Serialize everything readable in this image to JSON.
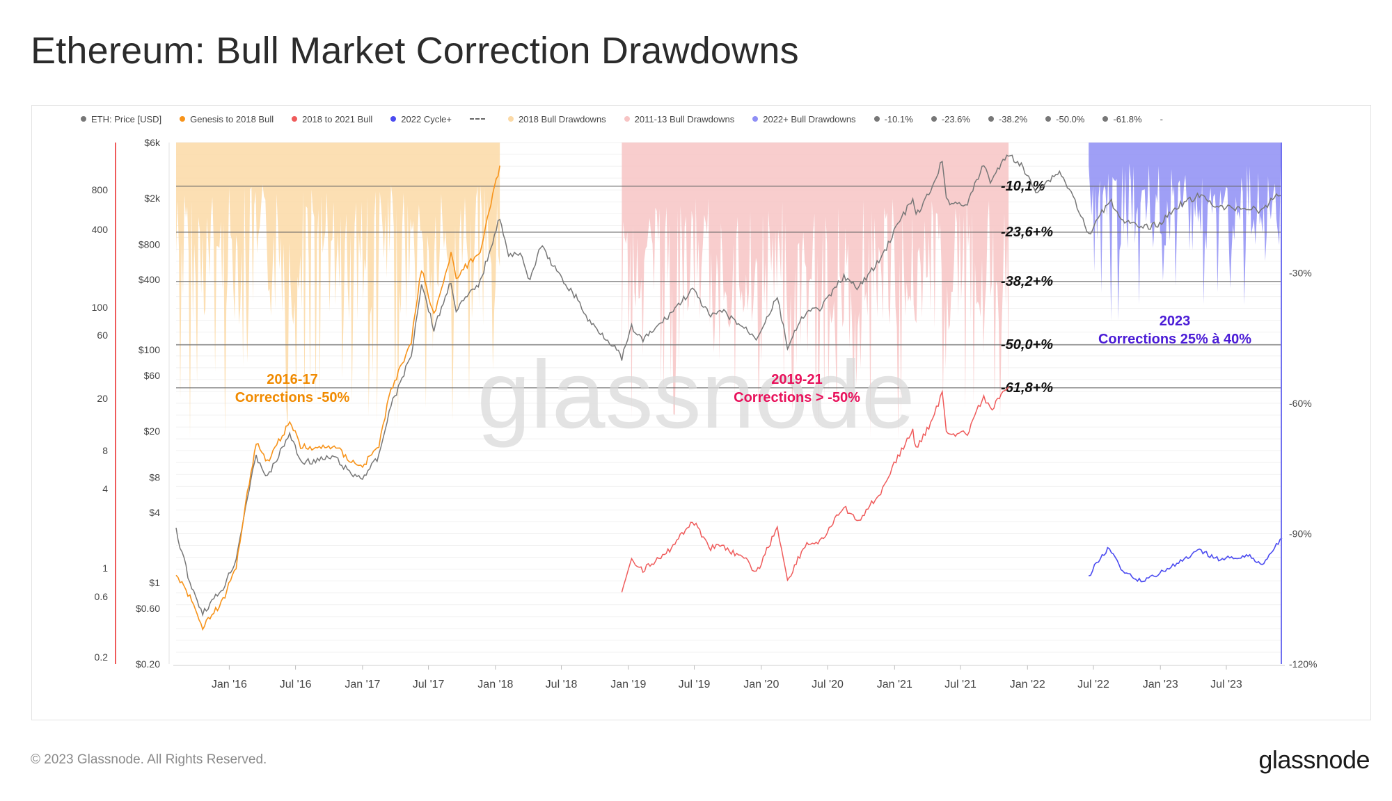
{
  "title": "Ethereum: Bull Market Correction Drawdowns",
  "legend": [
    {
      "label": "ETH: Price [USD]",
      "color": "#777777",
      "kind": "dot"
    },
    {
      "label": "Genesis to 2018 Bull",
      "color": "#f7931a",
      "kind": "dot"
    },
    {
      "label": "2018 to 2021 Bull",
      "color": "#ef5b5b",
      "kind": "dot"
    },
    {
      "label": "2022 Cycle+",
      "color": "#4b4bf0",
      "kind": "dot"
    },
    {
      "label": "",
      "color": "#666666",
      "kind": "line"
    },
    {
      "label": "2018 Bull Drawdowns",
      "color": "#fbd9a6",
      "kind": "dot"
    },
    {
      "label": "2011-13 Bull Drawdowns",
      "color": "#f7c4c4",
      "kind": "dot"
    },
    {
      "label": "2022+ Bull Drawdowns",
      "color": "#8e8ef5",
      "kind": "dot"
    },
    {
      "label": "-10.1%",
      "color": "#777777",
      "kind": "dot"
    },
    {
      "label": "-23.6%",
      "color": "#777777",
      "kind": "dot"
    },
    {
      "label": "-38.2%",
      "color": "#777777",
      "kind": "dot"
    },
    {
      "label": "-50.0%",
      "color": "#777777",
      "kind": "dot"
    },
    {
      "label": "-61.8%",
      "color": "#777777",
      "kind": "dot"
    },
    {
      "label": "-",
      "color": "#ffffff",
      "kind": "none"
    }
  ],
  "watermark": "glassnode",
  "footer": {
    "copyright": "© 2023 Glassnode. All Rights Reserved.",
    "logo": "glassnode"
  },
  "chart_data": {
    "type": "line",
    "title": "Ethereum: Bull Market Correction Drawdowns",
    "x_ticks": [
      "Jan '16",
      "Jul '16",
      "Jan '17",
      "Jul '17",
      "Jan '18",
      "Jul '18",
      "Jan '19",
      "Jul '19",
      "Jan '20",
      "Jul '20",
      "Jan '21",
      "Jul '21",
      "Jan '22",
      "Jul '22",
      "Jan '23",
      "Jul '23"
    ],
    "x_range": [
      "2015-08-08",
      "2023-12-01"
    ],
    "y_price_ticks": [
      "$0.20",
      "$0.60",
      "$1",
      "$4",
      "$8",
      "$20",
      "$60",
      "$100",
      "$400",
      "$800",
      "$2k",
      "$6k"
    ],
    "y_price_values": [
      0.2,
      0.6,
      1,
      4,
      8,
      20,
      60,
      100,
      400,
      800,
      2000,
      6000
    ],
    "y_price_scale": "log",
    "y_left_ticks": [
      "0.2",
      "0.6",
      "1",
      "4",
      "8",
      "20",
      "60",
      "100",
      "400",
      "800"
    ],
    "y_left_values": [
      0.2,
      0.6,
      1,
      4,
      8,
      20,
      60,
      100,
      400,
      800
    ],
    "y_right_ticks": [
      "-30%",
      "-60%",
      "-90%",
      "-120%"
    ],
    "y_right_values": [
      -30,
      -60,
      -90,
      -120
    ],
    "y_right_range": [
      -120,
      0
    ],
    "fib_levels": [
      {
        "label": "-10,1%",
        "price": 2530
      },
      {
        "label": "-23,6+%",
        "price": 1020
      },
      {
        "label": "-38,2+%",
        "price": 385
      },
      {
        "label": "-50,0+%",
        "price": 110
      },
      {
        "label": "-61,8+%",
        "price": 47
      }
    ],
    "series": [
      {
        "name": "ETH: Price [USD]",
        "color": "#777777",
        "points": [
          [
            "2015-08-08",
            2.8
          ],
          [
            "2015-09-15",
            1.0
          ],
          [
            "2015-10-20",
            0.55
          ],
          [
            "2015-12-15",
            0.9
          ],
          [
            "2016-01-20",
            1.6
          ],
          [
            "2016-02-20",
            5.5
          ],
          [
            "2016-03-15",
            12
          ],
          [
            "2016-04-15",
            8
          ],
          [
            "2016-06-15",
            19
          ],
          [
            "2016-07-15",
            11
          ],
          [
            "2016-08-20",
            11
          ],
          [
            "2016-10-15",
            12
          ],
          [
            "2016-12-01",
            8.5
          ],
          [
            "2017-01-01",
            8
          ],
          [
            "2017-02-15",
            12
          ],
          [
            "2017-03-15",
            30
          ],
          [
            "2017-05-15",
            90
          ],
          [
            "2017-06-12",
            380
          ],
          [
            "2017-07-16",
            150
          ],
          [
            "2017-09-01",
            390
          ],
          [
            "2017-09-15",
            220
          ],
          [
            "2017-11-20",
            380
          ],
          [
            "2018-01-13",
            1380
          ],
          [
            "2018-02-06",
            620
          ],
          [
            "2018-03-10",
            700
          ],
          [
            "2018-04-06",
            380
          ],
          [
            "2018-05-05",
            790
          ],
          [
            "2018-06-28",
            420
          ],
          [
            "2018-08-15",
            270
          ],
          [
            "2018-09-12",
            180
          ],
          [
            "2018-11-20",
            110
          ],
          [
            "2018-12-14",
            84
          ],
          [
            "2019-01-10",
            155
          ],
          [
            "2019-02-10",
            120
          ],
          [
            "2019-04-10",
            180
          ],
          [
            "2019-06-26",
            330
          ],
          [
            "2019-08-15",
            190
          ],
          [
            "2019-09-15",
            215
          ],
          [
            "2019-11-25",
            145
          ],
          [
            "2019-12-18",
            125
          ],
          [
            "2020-02-14",
            280
          ],
          [
            "2020-03-13",
            105
          ],
          [
            "2020-04-30",
            205
          ],
          [
            "2020-06-15",
            230
          ],
          [
            "2020-08-15",
            430
          ],
          [
            "2020-09-20",
            330
          ],
          [
            "2020-11-24",
            600
          ],
          [
            "2021-01-10",
            1200
          ],
          [
            "2021-02-20",
            1950
          ],
          [
            "2021-03-01",
            1400
          ],
          [
            "2021-04-15",
            2450
          ],
          [
            "2021-05-12",
            4250
          ],
          [
            "2021-05-23",
            1900
          ],
          [
            "2021-06-22",
            1800
          ],
          [
            "2021-07-20",
            1800
          ],
          [
            "2021-09-03",
            3900
          ],
          [
            "2021-09-21",
            2800
          ],
          [
            "2021-11-10",
            4800
          ],
          [
            "2021-12-15",
            3800
          ],
          [
            "2022-01-24",
            2300
          ],
          [
            "2022-03-30",
            3400
          ],
          [
            "2022-05-12",
            1900
          ],
          [
            "2022-06-18",
            950
          ],
          [
            "2022-08-14",
            1950
          ],
          [
            "2022-09-20",
            1300
          ],
          [
            "2022-11-09",
            1100
          ],
          [
            "2022-12-30",
            1200
          ],
          [
            "2023-02-15",
            1700
          ],
          [
            "2023-04-18",
            2100
          ],
          [
            "2023-06-15",
            1650
          ],
          [
            "2023-08-25",
            1650
          ],
          [
            "2023-10-12",
            1550
          ],
          [
            "2023-11-10",
            2100
          ],
          [
            "2023-12-01",
            2100
          ]
        ]
      },
      {
        "name": "Genesis to 2018 Bull",
        "color": "#f7931a",
        "points": [
          [
            "2015-08-08",
            1.2
          ],
          [
            "2015-09-15",
            0.75
          ],
          [
            "2015-10-20",
            0.42
          ],
          [
            "2015-12-15",
            0.7
          ],
          [
            "2016-01-20",
            1.4
          ],
          [
            "2016-02-20",
            6
          ],
          [
            "2016-03-15",
            16
          ],
          [
            "2016-04-15",
            11
          ],
          [
            "2016-06-15",
            24
          ],
          [
            "2016-07-15",
            15
          ],
          [
            "2016-08-20",
            14
          ],
          [
            "2016-10-15",
            15
          ],
          [
            "2016-12-01",
            11
          ],
          [
            "2017-01-01",
            10
          ],
          [
            "2017-02-15",
            15
          ],
          [
            "2017-03-15",
            40
          ],
          [
            "2017-05-15",
            120
          ],
          [
            "2017-06-12",
            500
          ],
          [
            "2017-07-16",
            200
          ],
          [
            "2017-09-01",
            650
          ],
          [
            "2017-09-15",
            420
          ],
          [
            "2017-11-20",
            700
          ],
          [
            "2018-01-13",
            3800
          ]
        ]
      },
      {
        "name": "2018 to 2021 Bull",
        "color": "#ef5b5b",
        "points": [
          [
            "2018-12-14",
            0.8
          ],
          [
            "2019-01-10",
            1.6
          ],
          [
            "2019-02-10",
            1.3
          ],
          [
            "2019-04-10",
            1.7
          ],
          [
            "2019-06-26",
            3.4
          ],
          [
            "2019-08-15",
            2.0
          ],
          [
            "2019-09-15",
            2.1
          ],
          [
            "2019-11-25",
            1.5
          ],
          [
            "2019-12-18",
            1.2
          ],
          [
            "2020-02-14",
            3.0
          ],
          [
            "2020-03-13",
            1.05
          ],
          [
            "2020-04-30",
            2.1
          ],
          [
            "2020-06-15",
            2.3
          ],
          [
            "2020-08-15",
            4.5
          ],
          [
            "2020-09-20",
            3.3
          ],
          [
            "2020-11-24",
            6
          ],
          [
            "2021-01-10",
            12
          ],
          [
            "2021-02-20",
            20
          ],
          [
            "2021-03-01",
            14
          ],
          [
            "2021-04-15",
            25
          ],
          [
            "2021-05-12",
            43
          ],
          [
            "2021-05-23",
            20
          ],
          [
            "2021-06-22",
            19
          ],
          [
            "2021-07-20",
            19
          ],
          [
            "2021-09-03",
            40
          ],
          [
            "2021-09-21",
            30
          ],
          [
            "2021-11-10",
            48
          ]
        ]
      },
      {
        "name": "2022 Cycle+",
        "color": "#4b4bf0",
        "points": [
          [
            "2022-06-18",
            -100
          ],
          [
            "2022-07-15",
            -96
          ],
          [
            "2022-08-14",
            -93
          ],
          [
            "2022-09-20",
            -99
          ],
          [
            "2022-11-09",
            -101
          ],
          [
            "2022-12-30",
            -99
          ],
          [
            "2023-02-15",
            -97
          ],
          [
            "2023-04-18",
            -94
          ],
          [
            "2023-06-15",
            -96
          ],
          [
            "2023-08-25",
            -95
          ],
          [
            "2023-10-12",
            -97
          ],
          [
            "2023-11-10",
            -93
          ],
          [
            "2023-12-01",
            -91
          ]
        ]
      }
    ],
    "drawdown_bands": [
      {
        "name": "2018 Bull Drawdowns",
        "color": "#fbd9a6",
        "start": "2015-08-08",
        "end": "2018-01-13"
      },
      {
        "name": "2011-13 Bull Drawdowns",
        "color": "#f7c4c4",
        "start": "2018-12-14",
        "end": "2021-11-10"
      },
      {
        "name": "2022+ Bull Drawdowns",
        "color": "#8e8ef5",
        "start": "2022-06-18",
        "end": "2023-12-01"
      }
    ],
    "annotations": [
      {
        "line1": "2016-17",
        "line2": "Corrections -50%",
        "color": "#f08a00"
      },
      {
        "line1": "2019-21",
        "line2": "Corrections > -50%",
        "color": "#e8115b"
      },
      {
        "line1": "2023",
        "line2": "Corrections 25% à 40%",
        "color": "#4a1bd6"
      }
    ]
  }
}
